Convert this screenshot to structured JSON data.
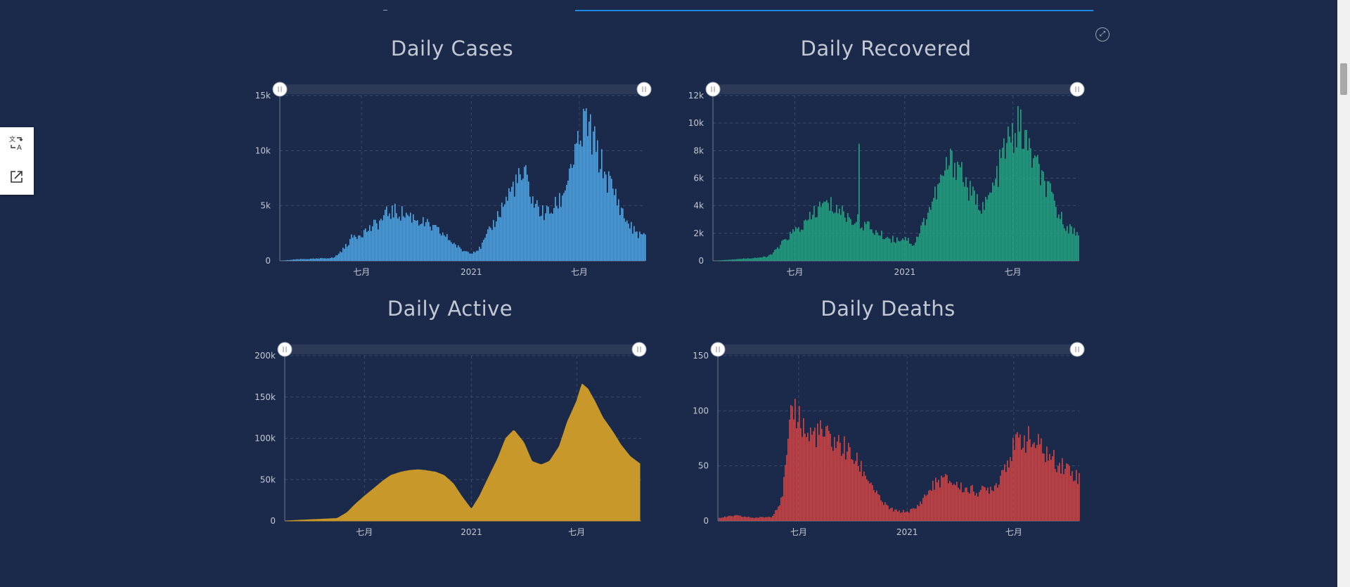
{
  "colors": {
    "background": "#1b2a4b",
    "cases": "#4ea8ea",
    "recovered": "#21a883",
    "active": "#c9982a",
    "deaths": "#d84444",
    "tab_accent": "#1e88e5"
  },
  "toolbar": {
    "translate_icon": "translate-icon",
    "share_icon": "share-icon",
    "expand_icon": "fullscreen-icon"
  },
  "charts": {
    "cases": {
      "title": "Daily Cases"
    },
    "recovered": {
      "title": "Daily Recovered"
    },
    "active": {
      "title": "Daily Active"
    },
    "deaths": {
      "title": "Daily Deaths"
    }
  },
  "chart_data": [
    {
      "id": "cases",
      "type": "bar",
      "title": "Daily Cases",
      "color": "#4ea8ea",
      "ylim": [
        0,
        15000
      ],
      "yticks": [
        0,
        5000,
        10000,
        15000
      ],
      "ytick_labels": [
        "0",
        "5k",
        "10k",
        "15k"
      ],
      "x_ticks": [
        [
          "2020-07-01",
          "七月"
        ],
        [
          "2021-01-01",
          "2021"
        ],
        [
          "2021-07-01",
          "七月"
        ]
      ],
      "x_range": [
        "2020-02-15",
        "2021-10-20"
      ],
      "x": [
        "2020-02-15",
        "2020-03-15",
        "2020-04-15",
        "2020-05-15",
        "2020-06-01",
        "2020-06-15",
        "2020-07-01",
        "2020-07-15",
        "2020-08-01",
        "2020-08-15",
        "2020-09-01",
        "2020-09-15",
        "2020-10-01",
        "2020-10-15",
        "2020-11-01",
        "2020-11-15",
        "2020-12-01",
        "2020-12-15",
        "2021-01-01",
        "2021-01-15",
        "2021-02-01",
        "2021-02-15",
        "2021-03-01",
        "2021-03-15",
        "2021-04-01",
        "2021-04-15",
        "2021-05-01",
        "2021-05-15",
        "2021-06-01",
        "2021-06-15",
        "2021-07-01",
        "2021-07-10",
        "2021-07-20",
        "2021-08-01",
        "2021-08-15",
        "2021-09-01",
        "2021-09-15",
        "2021-10-01",
        "2021-10-20"
      ],
      "values": [
        0,
        150,
        200,
        300,
        1200,
        2300,
        2700,
        3100,
        3800,
        4700,
        4600,
        4400,
        4000,
        3500,
        3000,
        2500,
        1700,
        1000,
        800,
        1200,
        3000,
        4500,
        6000,
        7500,
        8000,
        5500,
        4500,
        4800,
        6000,
        9000,
        11000,
        13500,
        12000,
        10000,
        8000,
        6000,
        4000,
        2800,
        2200
      ]
    },
    {
      "id": "recovered",
      "type": "bar",
      "title": "Daily Recovered",
      "color": "#21a883",
      "ylim": [
        0,
        12000
      ],
      "yticks": [
        0,
        2000,
        4000,
        6000,
        8000,
        10000,
        12000
      ],
      "ytick_labels": [
        "0",
        "2k",
        "4k",
        "6k",
        "8k",
        "10k",
        "12k"
      ],
      "x_ticks": [
        [
          "2020-07-01",
          "七月"
        ],
        [
          "2021-01-01",
          "2021"
        ],
        [
          "2021-07-01",
          "七月"
        ]
      ],
      "x_range": [
        "2020-02-15",
        "2021-10-20"
      ],
      "x": [
        "2020-02-15",
        "2020-03-15",
        "2020-04-15",
        "2020-05-15",
        "2020-06-01",
        "2020-06-15",
        "2020-07-01",
        "2020-07-15",
        "2020-08-01",
        "2020-08-15",
        "2020-09-01",
        "2020-09-15",
        "2020-10-01",
        "2020-10-15",
        "2020-11-01",
        "2020-11-15",
        "2020-12-01",
        "2020-12-15",
        "2021-01-01",
        "2021-01-15",
        "2021-02-01",
        "2021-02-15",
        "2021-03-01",
        "2021-03-15",
        "2021-04-01",
        "2021-04-15",
        "2021-05-01",
        "2021-05-15",
        "2021-06-01",
        "2021-06-15",
        "2021-07-01",
        "2021-07-10",
        "2021-07-20",
        "2021-08-01",
        "2021-08-15",
        "2021-09-01",
        "2021-09-15",
        "2021-10-01",
        "2021-10-20"
      ],
      "values": [
        0,
        100,
        200,
        300,
        900,
        1700,
        2300,
        2700,
        3500,
        4300,
        4200,
        3800,
        3200,
        3000,
        2600,
        2100,
        1800,
        1600,
        1800,
        1200,
        3000,
        4500,
        6000,
        7500,
        7500,
        5500,
        4500,
        4200,
        6000,
        8500,
        9500,
        10400,
        9200,
        8000,
        6500,
        5000,
        3500,
        2500,
        2000
      ],
      "spikes": [
        [
          "2020-10-15",
          8500
        ],
        [
          "2020-08-01",
          4000
        ]
      ]
    },
    {
      "id": "active",
      "type": "area",
      "title": "Daily Active",
      "color": "#c9982a",
      "ylim": [
        0,
        200000
      ],
      "yticks": [
        0,
        50000,
        100000,
        150000,
        200000
      ],
      "ytick_labels": [
        "0",
        "50k",
        "100k",
        "150k",
        "200k"
      ],
      "x_ticks": [
        [
          "2020-07-01",
          "七月"
        ],
        [
          "2021-01-01",
          "2021"
        ],
        [
          "2021-07-01",
          "七月"
        ]
      ],
      "x_range": [
        "2020-02-15",
        "2021-10-20"
      ],
      "x": [
        "2020-02-15",
        "2020-03-15",
        "2020-04-15",
        "2020-05-15",
        "2020-06-01",
        "2020-06-15",
        "2020-07-01",
        "2020-07-15",
        "2020-08-01",
        "2020-08-15",
        "2020-09-01",
        "2020-09-15",
        "2020-10-01",
        "2020-10-15",
        "2020-11-01",
        "2020-11-15",
        "2020-12-01",
        "2020-12-15",
        "2021-01-01",
        "2021-01-15",
        "2021-02-01",
        "2021-02-15",
        "2021-03-01",
        "2021-03-15",
        "2021-04-01",
        "2021-04-15",
        "2021-05-01",
        "2021-05-15",
        "2021-06-01",
        "2021-06-15",
        "2021-07-01",
        "2021-07-10",
        "2021-07-20",
        "2021-08-01",
        "2021-08-15",
        "2021-09-01",
        "2021-09-15",
        "2021-10-01",
        "2021-10-20"
      ],
      "values": [
        0,
        1000,
        2000,
        3000,
        10000,
        20000,
        30000,
        38000,
        48000,
        55000,
        59000,
        61000,
        62000,
        61000,
        59000,
        55000,
        45000,
        30000,
        14000,
        30000,
        55000,
        75000,
        100000,
        110000,
        95000,
        72000,
        68000,
        72000,
        90000,
        120000,
        145000,
        166000,
        160000,
        145000,
        125000,
        108000,
        92000,
        78000,
        68000
      ]
    },
    {
      "id": "deaths",
      "type": "bar",
      "title": "Daily Deaths",
      "color": "#d84444",
      "ylim": [
        0,
        150
      ],
      "yticks": [
        0,
        50,
        100,
        150
      ],
      "ytick_labels": [
        "0",
        "50",
        "100",
        "150"
      ],
      "x_ticks": [
        [
          "2020-07-01",
          "七月"
        ],
        [
          "2021-01-01",
          "2021"
        ],
        [
          "2021-07-01",
          "七月"
        ]
      ],
      "x_range": [
        "2020-02-15",
        "2021-10-20"
      ],
      "x": [
        "2020-02-15",
        "2020-03-15",
        "2020-04-15",
        "2020-05-15",
        "2020-06-01",
        "2020-06-10",
        "2020-06-20",
        "2020-07-01",
        "2020-07-15",
        "2020-08-01",
        "2020-08-15",
        "2020-09-01",
        "2020-09-15",
        "2020-10-01",
        "2020-10-15",
        "2020-11-01",
        "2020-11-15",
        "2020-12-01",
        "2020-12-15",
        "2021-01-01",
        "2021-01-15",
        "2021-02-01",
        "2021-02-15",
        "2021-03-01",
        "2021-03-15",
        "2021-04-01",
        "2021-04-15",
        "2021-05-01",
        "2021-05-15",
        "2021-06-01",
        "2021-06-15",
        "2021-07-01",
        "2021-07-15",
        "2021-08-01",
        "2021-08-15",
        "2021-09-01",
        "2021-09-15",
        "2021-10-01",
        "2021-10-20"
      ],
      "values": [
        3,
        5,
        3,
        4,
        20,
        60,
        110,
        100,
        80,
        85,
        80,
        75,
        70,
        60,
        50,
        35,
        20,
        12,
        9,
        9,
        12,
        25,
        35,
        40,
        38,
        32,
        30,
        28,
        30,
        35,
        55,
        70,
        80,
        75,
        70,
        60,
        55,
        50,
        40
      ]
    }
  ]
}
